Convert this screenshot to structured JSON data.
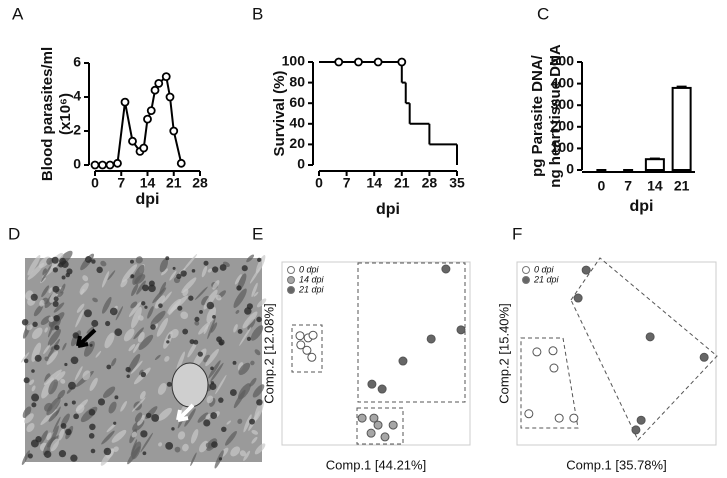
{
  "chart_data": [
    {
      "type": "line",
      "panel_label": "A",
      "ylabel": [
        "Blood parasites/ml",
        "(x10⁶)"
      ],
      "xlabel": "dpi",
      "x": [
        0,
        2,
        4,
        6,
        8,
        10,
        12,
        13,
        14,
        15,
        16,
        17,
        19,
        20,
        21,
        23
      ],
      "values": [
        0,
        0,
        0,
        0.1,
        3.7,
        1.4,
        0.8,
        1.0,
        2.7,
        3.2,
        4.4,
        4.8,
        5.2,
        4.0,
        2.0,
        0.1
      ],
      "color": "#000000",
      "xlim": [
        0,
        28
      ],
      "xticks": [
        0,
        7,
        14,
        21,
        28
      ],
      "ylim": [
        0,
        6
      ],
      "yticks": [
        0,
        2,
        4,
        6
      ]
    },
    {
      "type": "step",
      "panel_label": "B",
      "ylabel": "Survival (%)",
      "xlabel": "dpi",
      "x": [
        0,
        21,
        22,
        23,
        28,
        35
      ],
      "values": [
        100,
        80,
        60,
        40,
        20,
        0
      ],
      "censored_x": [
        5,
        10,
        15,
        21
      ],
      "censored_values": [
        100,
        100,
        100,
        100
      ],
      "color": "#000000",
      "xlim": [
        0,
        35
      ],
      "xticks": [
        0,
        7,
        14,
        21,
        28,
        35
      ],
      "ylim": [
        0,
        100
      ],
      "yticks": [
        0,
        20,
        40,
        60,
        80,
        100
      ]
    },
    {
      "type": "bar",
      "panel_label": "C",
      "ylabel": [
        "pg Parasite DNA/",
        "ng heart tissue DNA"
      ],
      "xlabel": "dpi",
      "categories": [
        "0",
        "7",
        "14",
        "21"
      ],
      "values": [
        0,
        0,
        50,
        380
      ],
      "errors": [
        0,
        0,
        3,
        6
      ],
      "color": "#ffffff",
      "ylim": [
        0,
        500
      ],
      "yticks": [
        0,
        100,
        200,
        300,
        400,
        500
      ]
    },
    {
      "type": "image",
      "panel_label": "D"
    },
    {
      "type": "scatter",
      "panel_label": "E",
      "xlabel": "Comp.1 [44.21%]",
      "ylabel": "Comp.2 [12.08%]",
      "xlim": [
        -16,
        30
      ],
      "ylim": [
        -12,
        22
      ],
      "series": [
        {
          "name": "0 dpi",
          "color": "#ffffff",
          "x": [
            -11.6,
            -9.6,
            -8.4,
            -11.4,
            -9.9,
            -8.7
          ],
          "values": [
            8.3,
            7.9,
            8.4,
            6.6,
            5.6,
            4.3
          ]
        },
        {
          "name": "14 dpi",
          "color": "#a6a6a6",
          "x": [
            3.6,
            6.5,
            7.5,
            9.2,
            11.2,
            5.8
          ],
          "values": [
            -7.0,
            -7.0,
            -8.3,
            -10.5,
            -8.3,
            -9.8
          ]
        },
        {
          "name": "21 dpi",
          "color": "#666666",
          "x": [
            6.0,
            8.5,
            13.6,
            20.5,
            24.1,
            27.8
          ],
          "values": [
            -0.7,
            -1.6,
            3.6,
            7.7,
            20.7,
            9.4
          ]
        }
      ]
    },
    {
      "type": "scatter",
      "panel_label": "F",
      "xlabel": "Comp.1 [35.78%]",
      "ylabel": "Comp.2 [15.40%]",
      "xlim": [
        -16,
        26
      ],
      "ylim": [
        -14,
        20
      ],
      "series": [
        {
          "name": "0 dpi",
          "color": "#ffffff",
          "x": [
            -11.8,
            -8.4,
            -8.2,
            -13.5,
            -7.1,
            -4.0
          ],
          "values": [
            3.3,
            3.5,
            0.3,
            -8.2,
            -9.0,
            -9.0
          ]
        },
        {
          "name": "21 dpi",
          "color": "#666666",
          "x": [
            -1.4,
            -3.1,
            12.1,
            23.5,
            10.2,
            9.1
          ],
          "values": [
            18.5,
            13.3,
            6.1,
            2.3,
            -9.4,
            -11.2
          ]
        }
      ]
    }
  ]
}
